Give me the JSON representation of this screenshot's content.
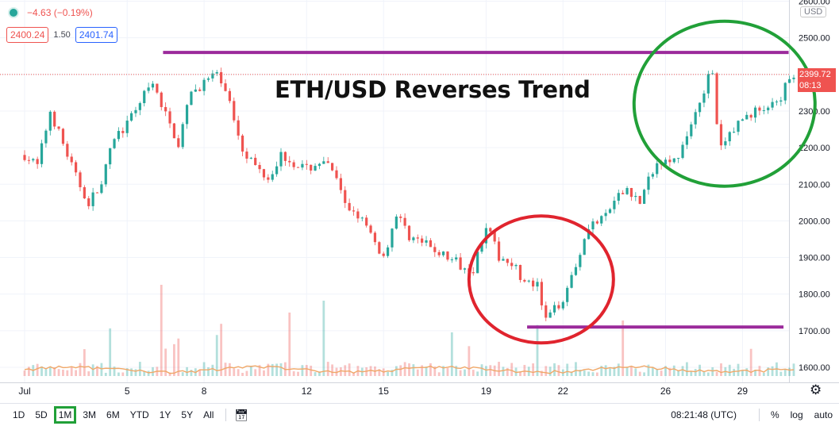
{
  "legend": {
    "change": "−4.63 (−0.19%)"
  },
  "prices": {
    "bid": "2400.24",
    "spread": "1.50",
    "ask": "2401.74"
  },
  "currency": "USD",
  "current_price": "2399.72",
  "countdown": "08:13",
  "chart_data": {
    "type": "candlestick",
    "title": "ETH/USD Reverses Trend",
    "x_ticks": [
      "Jul",
      "5",
      "8",
      "12",
      "15",
      "19",
      "22",
      "26",
      "29"
    ],
    "y_ticks": [
      1600,
      1700,
      1800,
      1900,
      2000,
      2100,
      2200,
      2300,
      2400,
      2500,
      2600
    ],
    "y_tick_labels": [
      "1600.00",
      "1700.00",
      "1800.00",
      "1900.00",
      "2000.00",
      "2100.00",
      "2200.00",
      "2300.00",
      "2400.00",
      "2500.00",
      "2600.00"
    ],
    "ylim": [
      1550,
      2600
    ],
    "grid": true,
    "close_path": [
      [
        0,
        2180
      ],
      [
        0.5,
        2150
      ],
      [
        1,
        2300
      ],
      [
        2,
        2120
      ],
      [
        2.5,
        2050
      ],
      [
        3,
        2100
      ],
      [
        3.5,
        2230
      ],
      [
        4,
        2260
      ],
      [
        4.5,
        2330
      ],
      [
        5,
        2370
      ],
      [
        6,
        2210
      ],
      [
        6.5,
        2350
      ],
      [
        7.4,
        2400
      ],
      [
        7.8,
        2370
      ],
      [
        8.5,
        2200
      ],
      [
        9,
        2150
      ],
      [
        9.5,
        2120
      ],
      [
        10,
        2180
      ],
      [
        11,
        2140
      ],
      [
        11.5,
        2160
      ],
      [
        12,
        2140
      ],
      [
        12.5,
        2040
      ],
      [
        13,
        2020
      ],
      [
        13.5,
        1960
      ],
      [
        14,
        1900
      ],
      [
        14.5,
        2020
      ],
      [
        15,
        1960
      ],
      [
        15.5,
        1940
      ],
      [
        16,
        1920
      ],
      [
        16.5,
        1900
      ],
      [
        17,
        1880
      ],
      [
        17.5,
        1870
      ],
      [
        18,
        1990
      ],
      [
        18.5,
        1900
      ],
      [
        19,
        1890
      ],
      [
        19.5,
        1830
      ],
      [
        20,
        1820
      ],
      [
        20.3,
        1725
      ],
      [
        20.7,
        1760
      ],
      [
        21,
        1790
      ],
      [
        21.5,
        1880
      ],
      [
        22,
        1990
      ],
      [
        22.5,
        2000
      ],
      [
        23,
        2050
      ],
      [
        23.5,
        2090
      ],
      [
        24,
        2050
      ],
      [
        24.5,
        2140
      ],
      [
        25,
        2180
      ],
      [
        25.5,
        2160
      ],
      [
        26,
        2270
      ],
      [
        26.5,
        2360
      ],
      [
        26.8,
        2420
      ],
      [
        27,
        2260
      ],
      [
        27.2,
        2190
      ],
      [
        27.5,
        2240
      ],
      [
        28,
        2280
      ],
      [
        28.5,
        2300
      ],
      [
        29,
        2310
      ],
      [
        29.5,
        2320
      ],
      [
        29.8,
        2400
      ],
      [
        30,
        2400
      ]
    ],
    "current_price": 2399.72,
    "annotations": {
      "resistance_line": 2460,
      "support_line": 1710,
      "circles": [
        {
          "color": "#e0242e",
          "center": [
            20.15,
            1840
          ],
          "note": "bottom"
        },
        {
          "color": "#21a038",
          "center": [
            27.3,
            2320
          ],
          "note": "top"
        }
      ]
    }
  },
  "timeframes": [
    "1D",
    "5D",
    "1M",
    "3M",
    "6M",
    "YTD",
    "1Y",
    "5Y",
    "All"
  ],
  "active_timeframe": "1M",
  "clock": "08:21:48 (UTC)",
  "tools": {
    "percent": "%",
    "log": "log",
    "auto": "auto"
  }
}
